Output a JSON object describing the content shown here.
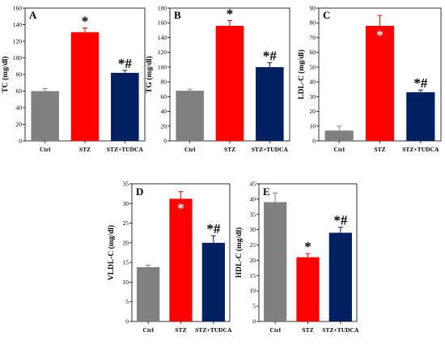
{
  "colors": {
    "Ctrl": "#808080",
    "STZ": "#ff0000",
    "STZ+TUDCA": "#002060"
  },
  "chart_data": [
    {
      "type": "bar",
      "panel": "A",
      "categories": [
        "Ctrl",
        "STZ",
        "STZ+TUDCA"
      ],
      "values": [
        60,
        131,
        82
      ],
      "errors": [
        3,
        5,
        3
      ],
      "ylabel": "TC (mg/dl)",
      "ylim": [
        0,
        160
      ],
      "yticks": [
        0,
        20,
        40,
        60,
        80,
        100,
        120,
        140,
        160
      ],
      "annotations": [
        "",
        "*",
        "*#"
      ],
      "annotation_inside": [
        false,
        false,
        false
      ],
      "grid": false
    },
    {
      "type": "bar",
      "panel": "B",
      "categories": [
        "Ctrl",
        "STZ",
        "STZ+TUDCA"
      ],
      "values": [
        68,
        156,
        100
      ],
      "errors": [
        2,
        7,
        6
      ],
      "ylabel": "TG (mg/dl)",
      "ylim": [
        0,
        180
      ],
      "yticks": [
        0,
        20,
        40,
        60,
        80,
        100,
        120,
        140,
        160,
        180
      ],
      "annotations": [
        "",
        "*",
        "*#"
      ],
      "annotation_inside": [
        false,
        false,
        false
      ],
      "grid": false
    },
    {
      "type": "bar",
      "panel": "C",
      "categories": [
        "Ctrl",
        "STZ",
        "STZ+TUDCA"
      ],
      "values": [
        7,
        78,
        33
      ],
      "errors": [
        3,
        7,
        1.5
      ],
      "ylabel": "LDL-C (mg/dl)",
      "ylim": [
        0,
        90
      ],
      "yticks": [
        0,
        10,
        20,
        30,
        40,
        50,
        60,
        70,
        80,
        90
      ],
      "annotations": [
        "",
        "*",
        "*#"
      ],
      "annotation_inside": [
        false,
        true,
        false
      ],
      "grid": false
    },
    {
      "type": "bar",
      "panel": "D",
      "categories": [
        "Ctrl",
        "STZ",
        "STZ+TUDCA"
      ],
      "values": [
        13.8,
        31.2,
        20
      ],
      "errors": [
        0.5,
        1.8,
        1.8
      ],
      "ylabel": "VLDL-C (mg/dl)",
      "ylim": [
        0,
        35
      ],
      "yticks": [
        0,
        5,
        10,
        15,
        20,
        25,
        30,
        35
      ],
      "annotations": [
        "",
        "*",
        "*#"
      ],
      "annotation_inside": [
        false,
        true,
        false
      ],
      "grid": false
    },
    {
      "type": "bar",
      "panel": "E",
      "categories": [
        "Ctrl",
        "STZ",
        "STZ+TUDCA"
      ],
      "values": [
        39,
        21,
        29
      ],
      "errors": [
        3,
        1.2,
        1.8
      ],
      "ylabel": "HDL-C (mg/dl)",
      "ylim": [
        0,
        45
      ],
      "yticks": [
        0,
        5,
        10,
        15,
        20,
        25,
        30,
        35,
        40,
        45
      ],
      "annotations": [
        "",
        "*",
        "*#"
      ],
      "annotation_inside": [
        false,
        false,
        false
      ],
      "grid": false
    }
  ]
}
